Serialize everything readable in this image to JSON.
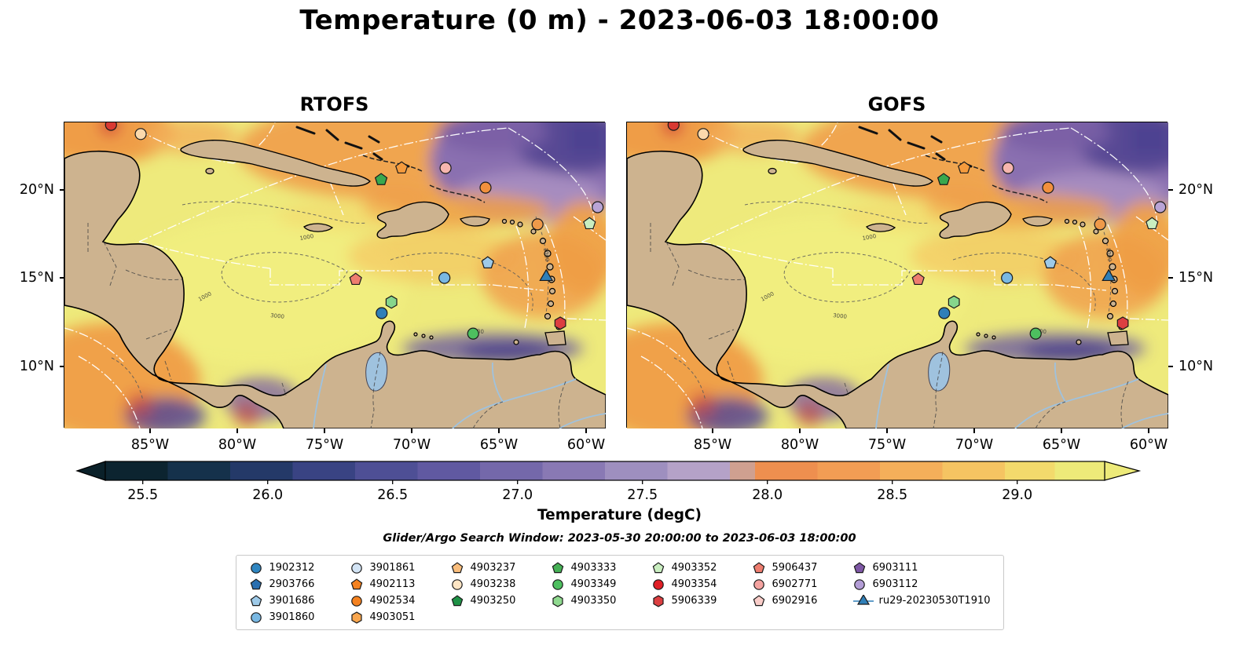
{
  "title": "Temperature (0 m) - 2023-06-03 18:00:00",
  "search_window": "Glider/Argo Search Window: 2023-05-30 20:00:00 to 2023-06-03 18:00:00",
  "chart_data": {
    "type": "heatmap",
    "subtype": "sea-surface-temperature-model-comparison-maps",
    "region": "Caribbean Sea / Tropical North Atlantic",
    "panels": [
      {
        "title": "RTOFS"
      },
      {
        "title": "GOFS"
      }
    ],
    "x_ticks": [
      {
        "label": "85°W",
        "f": 0.158
      },
      {
        "label": "80°W",
        "f": 0.319
      },
      {
        "label": "75°W",
        "f": 0.48
      },
      {
        "label": "70°W",
        "f": 0.641
      },
      {
        "label": "65°W",
        "f": 0.803
      },
      {
        "label": "60°W",
        "f": 0.964
      }
    ],
    "y_ticks": [
      {
        "label": "20°N",
        "f": 0.221
      },
      {
        "label": "15°N",
        "f": 0.508
      },
      {
        "label": "10°N",
        "f": 0.797
      }
    ],
    "lon_range": [
      -89.9,
      -58.8
    ],
    "lat_range": [
      6.5,
      23.8
    ],
    "colorbar": {
      "label": "Temperature (degC)",
      "vmin": 25.35,
      "vmax": 29.35,
      "tick_labels": [
        "25.5",
        "26.0",
        "26.5",
        "27.0",
        "27.5",
        "28.0",
        "28.5",
        "29.0"
      ],
      "tick_values": [
        25.5,
        26.0,
        26.5,
        27.0,
        27.5,
        28.0,
        28.5,
        29.0
      ],
      "left_arrow_color": "#0a2029",
      "right_arrow_color": "#edea79",
      "segments": [
        {
          "to": 25.6,
          "color": "#0c2430"
        },
        {
          "to": 25.85,
          "color": "#15314b"
        },
        {
          "to": 26.1,
          "color": "#243968"
        },
        {
          "to": 26.35,
          "color": "#394383"
        },
        {
          "to": 26.6,
          "color": "#4e4f95"
        },
        {
          "to": 26.85,
          "color": "#6059a1"
        },
        {
          "to": 27.1,
          "color": "#7468aa"
        },
        {
          "to": 27.35,
          "color": "#8979b4"
        },
        {
          "to": 27.6,
          "color": "#9e8fbf"
        },
        {
          "to": 27.85,
          "color": "#b5a2c8"
        },
        {
          "to": 27.95,
          "color": "#cfa090"
        },
        {
          "to": 28.2,
          "color": "#ee8f4f"
        },
        {
          "to": 28.45,
          "color": "#f29d54"
        },
        {
          "to": 28.7,
          "color": "#f4af5a"
        },
        {
          "to": 28.95,
          "color": "#f5c462"
        },
        {
          "to": 29.15,
          "color": "#f3da6c"
        },
        {
          "to": 29.35,
          "color": "#edea79"
        }
      ]
    },
    "markers": [
      {
        "shape": "circle",
        "color": "#d93a33",
        "x": 0.086,
        "y": 0.008,
        "lon": -87.3,
        "lat": 23.7
      },
      {
        "shape": "circle",
        "color": "#fbd9ac",
        "x": 0.141,
        "y": 0.038,
        "lon": -85.5,
        "lat": 23.2
      },
      {
        "shape": "pentagon",
        "color": "#f59b3d",
        "x": 0.623,
        "y": 0.149,
        "lon": -70.6,
        "lat": 21.2
      },
      {
        "shape": "circle",
        "color": "#f6b6ae",
        "x": 0.704,
        "y": 0.149,
        "lon": -68.1,
        "lat": 21.2
      },
      {
        "shape": "pentagon",
        "color": "#39a84e",
        "x": 0.585,
        "y": 0.187,
        "lon": -71.8,
        "lat": 20.6
      },
      {
        "shape": "circle",
        "color": "#f2903d",
        "x": 0.778,
        "y": 0.213,
        "lon": -65.8,
        "lat": 20.1
      },
      {
        "shape": "circle",
        "color": "#b9a4d6",
        "x": 0.985,
        "y": 0.277,
        "lon": -59.3,
        "lat": 19.0
      },
      {
        "shape": "pentagon",
        "color": "#c9eec0",
        "x": 0.97,
        "y": 0.331,
        "lon": -59.8,
        "lat": 18.1
      },
      {
        "shape": "circle",
        "color": "#ef9a4a",
        "x": 0.874,
        "y": 0.333,
        "lon": -62.8,
        "lat": 18.0
      },
      {
        "shape": "pentagon",
        "color": "#9ecae8",
        "x": 0.782,
        "y": 0.459,
        "lon": -65.6,
        "lat": 15.9
      },
      {
        "shape": "triangle",
        "color": "#2f7fb8",
        "x": 0.89,
        "y": 0.505,
        "lon": -62.3,
        "lat": 15.1,
        "id": "ru29-20230530T1910"
      },
      {
        "shape": "circle",
        "color": "#79b8e3",
        "x": 0.702,
        "y": 0.508,
        "lon": -68.1,
        "lat": 15.0
      },
      {
        "shape": "pentagon",
        "color": "#ee7d6f",
        "x": 0.538,
        "y": 0.513,
        "lon": -73.2,
        "lat": 14.9
      },
      {
        "shape": "hexagon",
        "color": "#86d68c",
        "x": 0.604,
        "y": 0.587,
        "lon": -71.2,
        "lat": 13.6
      },
      {
        "shape": "circle",
        "color": "#2f7fb8",
        "x": 0.586,
        "y": 0.623,
        "lon": -71.7,
        "lat": 13.0
      },
      {
        "shape": "circle",
        "color": "#4dbf5f",
        "x": 0.755,
        "y": 0.69,
        "lon": -66.5,
        "lat": 11.8
      },
      {
        "shape": "hexagon",
        "color": "#dc3f41",
        "x": 0.916,
        "y": 0.656,
        "lon": -61.5,
        "lat": 12.4
      }
    ],
    "contour_labels": [
      {
        "text": "1000",
        "x": 172,
        "y": 228,
        "rot": -28
      },
      {
        "text": "3000",
        "x": 262,
        "y": 248,
        "rot": 6
      },
      {
        "text": "1000",
        "x": 300,
        "y": 150,
        "rot": -10
      },
      {
        "text": "3000",
        "x": 516,
        "y": 268,
        "rot": 3
      },
      {
        "text": "1000",
        "x": 610,
        "y": 160,
        "rot": 82
      }
    ]
  },
  "legend": {
    "columns": [
      [
        {
          "id": "1902312",
          "shape": "circle",
          "color": "#2f86c1"
        },
        {
          "id": "2903766",
          "shape": "pentagon",
          "color": "#2a6fb0"
        },
        {
          "id": "3901686",
          "shape": "pentagon",
          "color": "#9ecae8"
        },
        {
          "id": "3901860",
          "shape": "circle",
          "color": "#79b8e3"
        }
      ],
      [
        {
          "id": "3901861",
          "shape": "circle",
          "color": "#d3e4f5"
        },
        {
          "id": "4902113",
          "shape": "pentagon",
          "color": "#f58220"
        },
        {
          "id": "4902534",
          "shape": "circle",
          "color": "#f58220"
        },
        {
          "id": "4903051",
          "shape": "hexagon",
          "color": "#f9a64e"
        }
      ],
      [
        {
          "id": "4903237",
          "shape": "pentagon",
          "color": "#f9bd7c"
        },
        {
          "id": "4903238",
          "shape": "circle",
          "color": "#fde5c4"
        },
        {
          "id": "4903250",
          "shape": "pentagon",
          "color": "#1f9246"
        }
      ],
      [
        {
          "id": "4903333",
          "shape": "pentagon",
          "color": "#45b055"
        },
        {
          "id": "4903349",
          "shape": "circle",
          "color": "#4dbf5f"
        },
        {
          "id": "4903350",
          "shape": "hexagon",
          "color": "#8fd98f"
        }
      ],
      [
        {
          "id": "4903352",
          "shape": "pentagon",
          "color": "#c9eec0"
        },
        {
          "id": "4903354",
          "shape": "circle",
          "color": "#e01f26"
        },
        {
          "id": "5906339",
          "shape": "hexagon",
          "color": "#dc3f41"
        }
      ],
      [
        {
          "id": "5906437",
          "shape": "pentagon",
          "color": "#ee7d6f"
        },
        {
          "id": "6902771",
          "shape": "circle",
          "color": "#f4a3a0"
        },
        {
          "id": "6902916",
          "shape": "pentagon",
          "color": "#f9cdc9"
        }
      ],
      [
        {
          "id": "6903111",
          "shape": "pentagon",
          "color": "#7e57a5"
        },
        {
          "id": "6903112",
          "shape": "circle",
          "color": "#b39dd6"
        },
        {
          "id": "ru29-20230530T1910",
          "shape": "glider",
          "color": "#2f7fb8"
        }
      ]
    ]
  }
}
